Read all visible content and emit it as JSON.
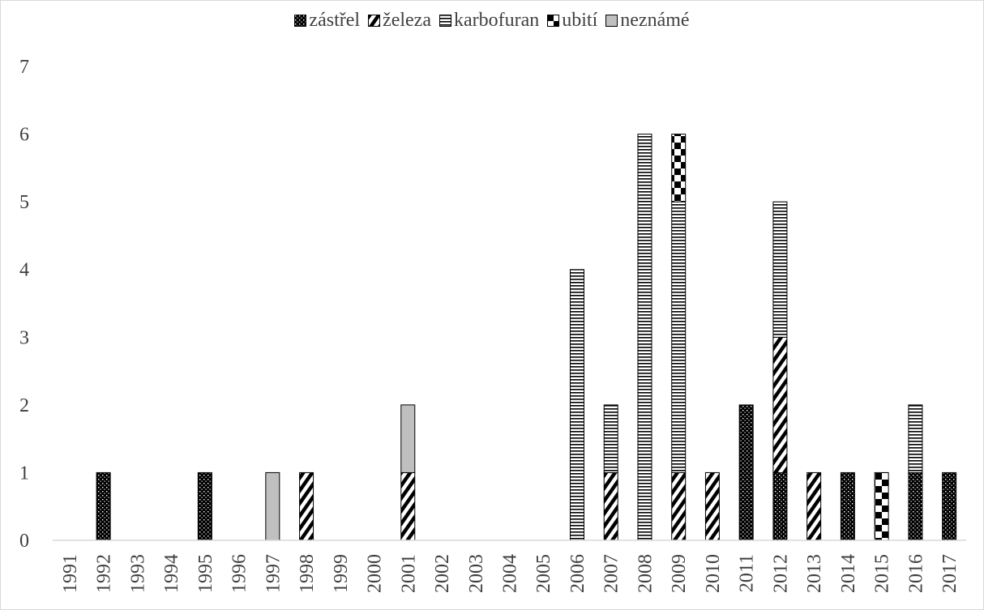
{
  "chart_data": {
    "type": "bar",
    "stacked": true,
    "title": "",
    "xlabel": "",
    "ylabel": "",
    "ylim": [
      0,
      7
    ],
    "yticks": [
      0,
      1,
      2,
      3,
      4,
      5,
      6,
      7
    ],
    "grid": false,
    "legend_position": "top",
    "categories": [
      "1991",
      "1992",
      "1993",
      "1994",
      "1995",
      "1996",
      "1997",
      "1998",
      "1999",
      "2000",
      "2001",
      "2002",
      "2003",
      "2004",
      "2005",
      "2006",
      "2007",
      "2008",
      "2009",
      "2010",
      "2011",
      "2012",
      "2013",
      "2014",
      "2015",
      "2016",
      "2017"
    ],
    "series": [
      {
        "name": "zástřel",
        "pattern": "dots",
        "values": [
          0,
          1,
          0,
          0,
          1,
          0,
          0,
          0,
          0,
          0,
          0,
          0,
          0,
          0,
          0,
          0,
          0,
          0,
          0,
          0,
          2,
          1,
          0,
          1,
          0,
          1,
          1
        ]
      },
      {
        "name": "železa",
        "pattern": "diagonal",
        "values": [
          0,
          0,
          0,
          0,
          0,
          0,
          0,
          1,
          0,
          0,
          1,
          0,
          0,
          0,
          0,
          0,
          1,
          0,
          1,
          1,
          0,
          2,
          1,
          0,
          0,
          0,
          0
        ]
      },
      {
        "name": "karbofuran",
        "pattern": "horizontal",
        "values": [
          0,
          0,
          0,
          0,
          0,
          0,
          0,
          0,
          0,
          0,
          0,
          0,
          0,
          0,
          0,
          4,
          1,
          6,
          4,
          0,
          0,
          2,
          0,
          0,
          0,
          1,
          0
        ]
      },
      {
        "name": "ubití",
        "pattern": "checker",
        "values": [
          0,
          0,
          0,
          0,
          0,
          0,
          0,
          0,
          0,
          0,
          0,
          0,
          0,
          0,
          0,
          0,
          0,
          0,
          1,
          0,
          0,
          0,
          0,
          0,
          1,
          0,
          0
        ]
      },
      {
        "name": "neznámé",
        "pattern": "gray",
        "values": [
          0,
          0,
          0,
          0,
          0,
          0,
          1,
          0,
          0,
          0,
          1,
          0,
          0,
          0,
          0,
          0,
          0,
          0,
          0,
          0,
          0,
          0,
          0,
          0,
          0,
          0,
          0
        ]
      }
    ]
  }
}
